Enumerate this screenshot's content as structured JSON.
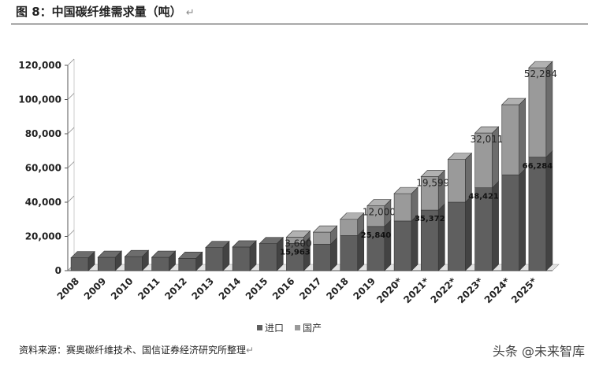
{
  "header": {
    "title": "图 8：中国碳纤维需求量（吨）",
    "return_mark": "↵"
  },
  "chart_data": {
    "type": "bar",
    "stacked": true,
    "style": "3d",
    "categories": [
      "2008",
      "2009",
      "2010",
      "2011",
      "2012",
      "2013",
      "2014",
      "2015",
      "2016",
      "2017",
      "2018",
      "2019",
      "2020*",
      "2021*",
      "2022*",
      "2023*",
      "2024*",
      "2025*"
    ],
    "series": [
      {
        "name": "进口",
        "color": "#5f5f5f",
        "values": [
          7500,
          7800,
          8200,
          7800,
          7200,
          13500,
          13800,
          15800,
          15963,
          15500,
          20500,
          25840,
          29000,
          35372,
          40000,
          48421,
          56000,
          66284
        ]
      },
      {
        "name": "国产",
        "color": "#9a9a9a",
        "values": [
          0,
          0,
          0,
          0,
          0,
          0,
          0,
          0,
          3600,
          7000,
          9500,
          12000,
          16000,
          19599,
          25000,
          32011,
          41000,
          52284
        ]
      }
    ],
    "data_labels": [
      {
        "category": "2016",
        "series": "进口",
        "text": "15,963"
      },
      {
        "category": "2016",
        "series": "国产",
        "text": "3,600"
      },
      {
        "category": "2019",
        "series": "进口",
        "text": "25,840"
      },
      {
        "category": "2019",
        "series": "国产",
        "text": "12,000"
      },
      {
        "category": "2021*",
        "series": "进口",
        "text": "35,372"
      },
      {
        "category": "2021*",
        "series": "国产",
        "text": "19,599"
      },
      {
        "category": "2023*",
        "series": "进口",
        "text": "48,421"
      },
      {
        "category": "2023*",
        "series": "国产",
        "text": "32,011"
      },
      {
        "category": "2025*",
        "series": "进口",
        "text": "66,284"
      },
      {
        "category": "2025*",
        "series": "国产",
        "text": "52,284"
      }
    ],
    "yticks": [
      "0",
      "20,000",
      "40,000",
      "60,000",
      "80,000",
      "100,000",
      "120,000"
    ],
    "ylim": [
      0,
      120000
    ],
    "legend_position": "bottom",
    "grid": false
  },
  "legend": {
    "items": [
      {
        "label": "进口",
        "color": "#5f5f5f"
      },
      {
        "label": "国产",
        "color": "#9a9a9a"
      }
    ]
  },
  "footer": {
    "source": "资料来源：赛奥碳纤维技术、国信证券经济研究所整理",
    "watermark": "头条 @未来智库"
  }
}
